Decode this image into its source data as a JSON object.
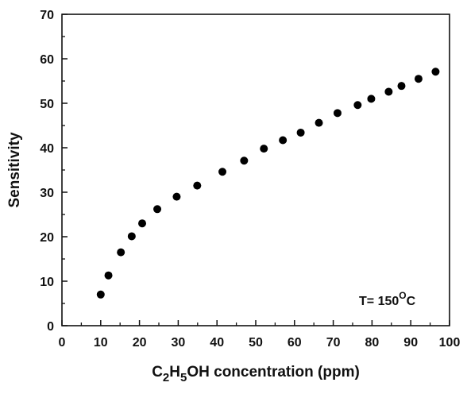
{
  "chart_data": {
    "type": "scatter",
    "xlabel": {
      "prefix": "C",
      "sub1": "2",
      "mid": "H",
      "sub2": "5",
      "suffix": "OH concentration (ppm)"
    },
    "ylabel": "Sensitivity",
    "xlim": [
      0,
      100
    ],
    "ylim": [
      0,
      70
    ],
    "x_ticks": [
      0,
      10,
      20,
      30,
      40,
      50,
      60,
      70,
      80,
      90,
      100
    ],
    "y_ticks": [
      0,
      10,
      20,
      30,
      40,
      50,
      60,
      70
    ],
    "grid": false,
    "annotation": {
      "prefix": "T= 150",
      "sup": "O",
      "suffix": "C"
    },
    "colors": {
      "marker": "#000000",
      "axis": "#111111"
    },
    "series": [
      {
        "points": [
          {
            "x": 10,
            "y": 7
          },
          {
            "x": 12,
            "y": 11.3
          },
          {
            "x": 15.2,
            "y": 16.5
          },
          {
            "x": 18,
            "y": 20.1
          },
          {
            "x": 20.7,
            "y": 23
          },
          {
            "x": 24.6,
            "y": 26.2
          },
          {
            "x": 29.6,
            "y": 29
          },
          {
            "x": 34.9,
            "y": 31.5
          },
          {
            "x": 41.4,
            "y": 34.6
          },
          {
            "x": 47,
            "y": 37.1
          },
          {
            "x": 52.1,
            "y": 39.8
          },
          {
            "x": 57,
            "y": 41.7
          },
          {
            "x": 61.6,
            "y": 43.4
          },
          {
            "x": 66.3,
            "y": 45.6
          },
          {
            "x": 71.1,
            "y": 47.8
          },
          {
            "x": 76.3,
            "y": 49.6
          },
          {
            "x": 79.8,
            "y": 51
          },
          {
            "x": 84.3,
            "y": 52.6
          },
          {
            "x": 87.6,
            "y": 53.9
          },
          {
            "x": 92,
            "y": 55.5
          },
          {
            "x": 96.4,
            "y": 57.1
          }
        ]
      }
    ]
  }
}
